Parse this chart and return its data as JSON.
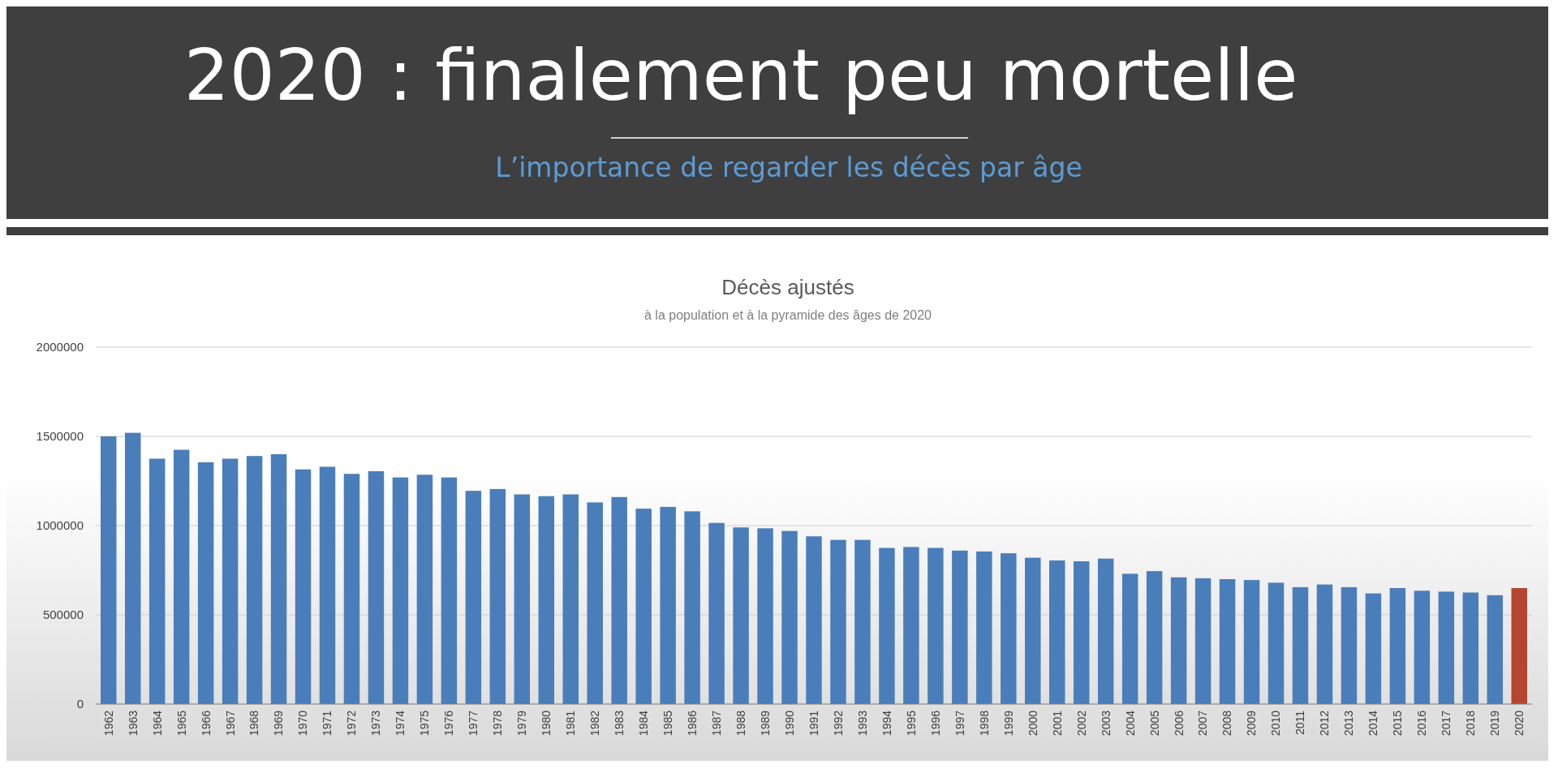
{
  "chart_data": {
    "type": "bar",
    "title": "Décès ajustés",
    "subtitle": "à la population et à la pyramide des âges de 2020",
    "annotations": [
      "2020 : finalement peu mortelle",
      "L’importance de regarder les décès par âge"
    ],
    "categories": [
      "1962",
      "1963",
      "1964",
      "1965",
      "1966",
      "1967",
      "1968",
      "1969",
      "1970",
      "1971",
      "1972",
      "1973",
      "1974",
      "1975",
      "1976",
      "1977",
      "1978",
      "1979",
      "1980",
      "1981",
      "1982",
      "1983",
      "1984",
      "1985",
      "1986",
      "1987",
      "1988",
      "1989",
      "1990",
      "1991",
      "1992",
      "1993",
      "1994",
      "1995",
      "1996",
      "1997",
      "1998",
      "1999",
      "2000",
      "2001",
      "2002",
      "2003",
      "2004",
      "2005",
      "2006",
      "2007",
      "2008",
      "2009",
      "2010",
      "2011",
      "2012",
      "2013",
      "2014",
      "2015",
      "2016",
      "2017",
      "2018",
      "2019",
      "2020"
    ],
    "values": [
      1500000,
      1520000,
      1375000,
      1425000,
      1355000,
      1375000,
      1390000,
      1400000,
      1315000,
      1330000,
      1290000,
      1305000,
      1270000,
      1285000,
      1270000,
      1195000,
      1205000,
      1175000,
      1165000,
      1175000,
      1130000,
      1160000,
      1095000,
      1105000,
      1080000,
      1015000,
      990000,
      985000,
      970000,
      940000,
      920000,
      920000,
      875000,
      880000,
      875000,
      860000,
      855000,
      845000,
      820000,
      805000,
      800000,
      815000,
      730000,
      745000,
      710000,
      705000,
      700000,
      695000,
      680000,
      655000,
      670000,
      655000,
      620000,
      650000,
      635000,
      630000,
      625000,
      610000,
      650000
    ],
    "colors": [
      "#4a7ebb",
      "#4a7ebb",
      "#4a7ebb",
      "#4a7ebb",
      "#4a7ebb",
      "#4a7ebb",
      "#4a7ebb",
      "#4a7ebb",
      "#4a7ebb",
      "#4a7ebb",
      "#4a7ebb",
      "#4a7ebb",
      "#4a7ebb",
      "#4a7ebb",
      "#4a7ebb",
      "#4a7ebb",
      "#4a7ebb",
      "#4a7ebb",
      "#4a7ebb",
      "#4a7ebb",
      "#4a7ebb",
      "#4a7ebb",
      "#4a7ebb",
      "#4a7ebb",
      "#4a7ebb",
      "#4a7ebb",
      "#4a7ebb",
      "#4a7ebb",
      "#4a7ebb",
      "#4a7ebb",
      "#4a7ebb",
      "#4a7ebb",
      "#4a7ebb",
      "#4a7ebb",
      "#4a7ebb",
      "#4a7ebb",
      "#4a7ebb",
      "#4a7ebb",
      "#4a7ebb",
      "#4a7ebb",
      "#4a7ebb",
      "#4a7ebb",
      "#4a7ebb",
      "#4a7ebb",
      "#4a7ebb",
      "#4a7ebb",
      "#4a7ebb",
      "#4a7ebb",
      "#4a7ebb",
      "#4a7ebb",
      "#4a7ebb",
      "#4a7ebb",
      "#4a7ebb",
      "#4a7ebb",
      "#4a7ebb",
      "#4a7ebb",
      "#4a7ebb",
      "#4a7ebb",
      "#b5452e"
    ],
    "ylim": [
      0,
      2000000
    ],
    "yticks": [
      0,
      500000,
      1000000,
      1500000,
      2000000
    ],
    "grid": "y"
  }
}
